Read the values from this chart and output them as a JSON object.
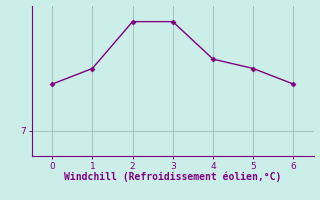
{
  "x": [
    0,
    1,
    2,
    3,
    4,
    5,
    6
  ],
  "y": [
    8.5,
    9.0,
    10.5,
    10.5,
    9.3,
    9.0,
    8.5
  ],
  "line_color": "#800080",
  "marker": "D",
  "markersize": 2.5,
  "linewidth": 1.0,
  "xlabel": "Windchill (Refroidissement éolien,°C)",
  "xlabel_fontsize": 7,
  "bg_color": "#cceee8",
  "plot_bg_color": "#cceee8",
  "grid_color": "#9bbfba",
  "xlim": [
    -0.5,
    6.5
  ],
  "ylim": [
    6.2,
    11.0
  ],
  "yticks": [
    7
  ],
  "xticks": [
    0,
    1,
    2,
    3,
    4,
    5,
    6
  ],
  "tick_color": "#800080",
  "tick_fontsize": 6.5,
  "spine_color": "#800080",
  "spine_bottom_color": "#800080"
}
